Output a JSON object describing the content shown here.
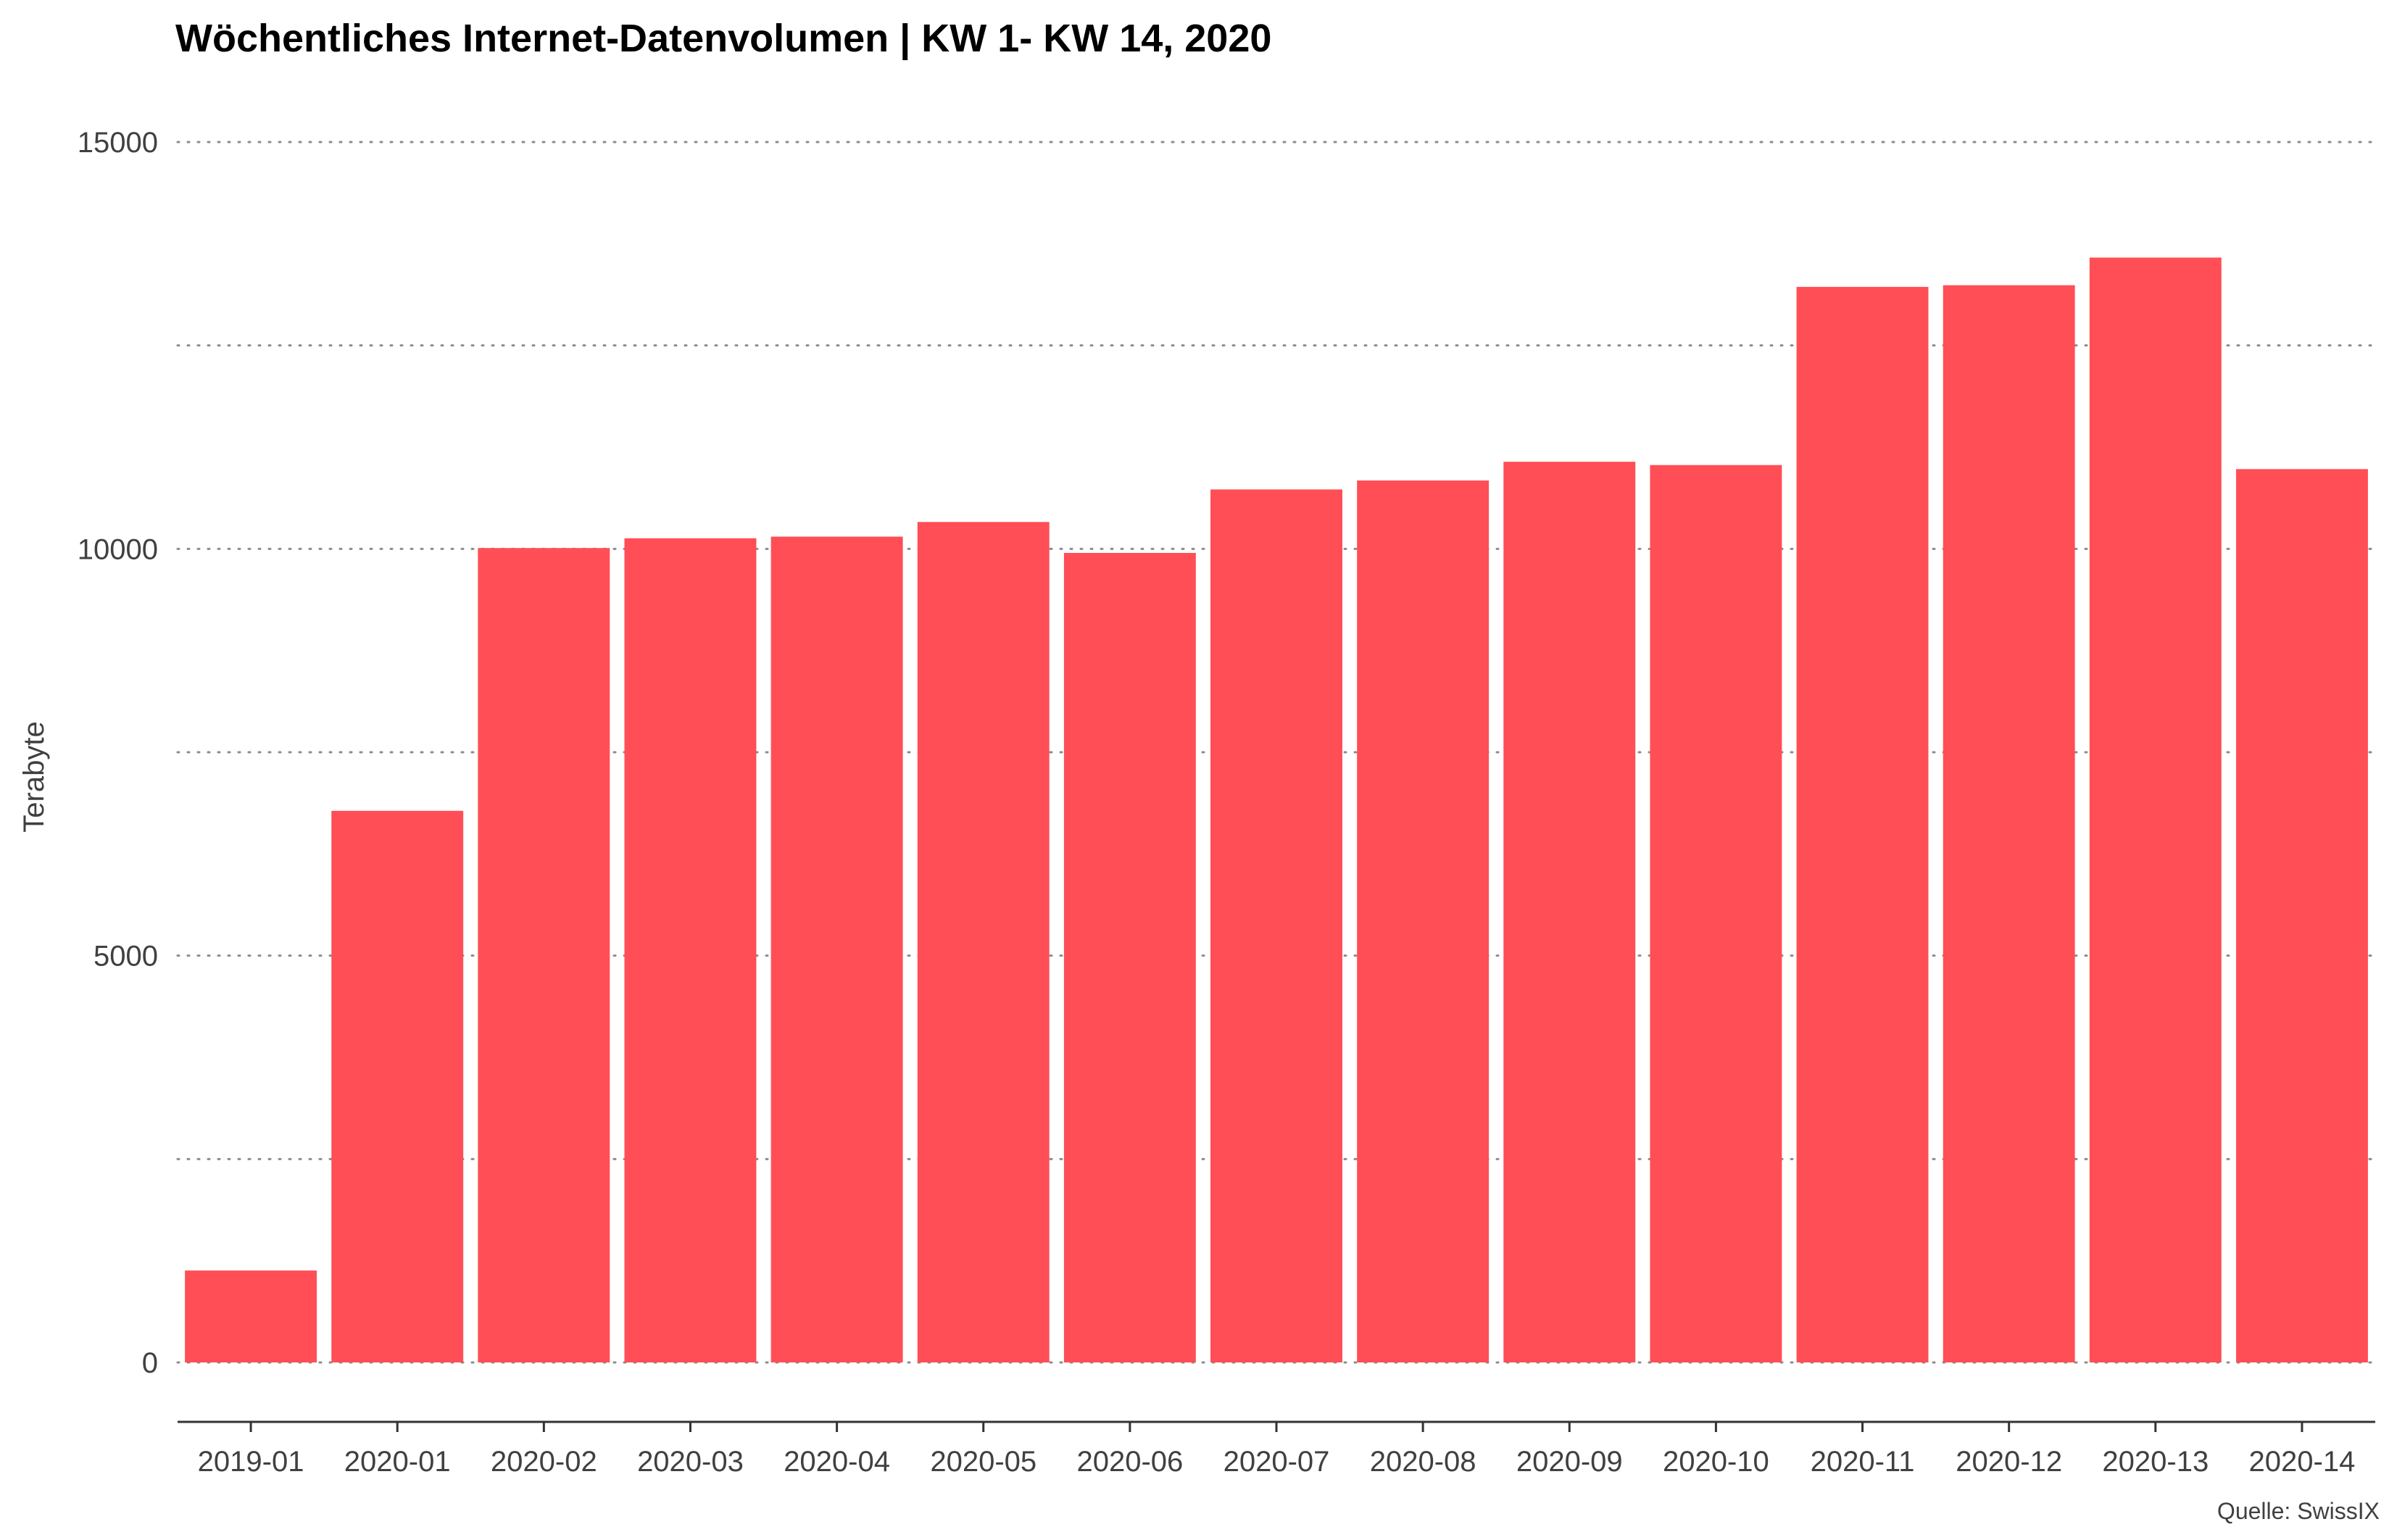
{
  "chart_data": {
    "type": "bar",
    "title": "Wöchentliches Internet-Datenvolumen | KW 1- KW 14, 2020",
    "xlabel": "",
    "ylabel": "Terabyte",
    "caption": "Quelle: SwissIX",
    "categories": [
      "2019-01",
      "2020-01",
      "2020-02",
      "2020-03",
      "2020-04",
      "2020-05",
      "2020-06",
      "2020-07",
      "2020-08",
      "2020-09",
      "2020-10",
      "2020-11",
      "2020-12",
      "2020-13",
      "2020-14"
    ],
    "values": [
      1130,
      6780,
      10010,
      10130,
      10150,
      10330,
      9950,
      10730,
      10840,
      11070,
      11030,
      13220,
      13240,
      13580,
      10980
    ],
    "ylim": [
      0,
      15000
    ],
    "yticks": [
      0,
      5000,
      10000,
      15000
    ],
    "minor_gridlines": [
      2500,
      7500,
      12500
    ],
    "grid": "horizontal-dotted",
    "bar_color": "#FF4E55",
    "legend": "none"
  }
}
